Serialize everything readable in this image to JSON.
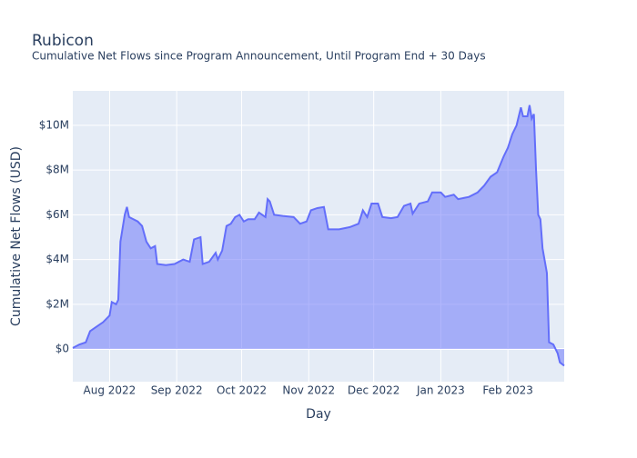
{
  "chart_data": {
    "type": "area",
    "title": "Rubicon",
    "subtitle": "Cumulative Net Flows since Program Announcement, Until Program End + 30 Days",
    "x_label": "Day",
    "y_label": "Cumulative Net Flows (USD)",
    "color": "#636efa",
    "grid": true,
    "x": [
      "2022-07-15",
      "2022-07-18",
      "2022-07-21",
      "2022-07-23",
      "2022-07-26",
      "2022-07-29",
      "2022-08-01",
      "2022-08-02",
      "2022-08-04",
      "2022-08-05",
      "2022-08-06",
      "2022-08-08",
      "2022-08-09",
      "2022-08-10",
      "2022-08-14",
      "2022-08-16",
      "2022-08-18",
      "2022-08-20",
      "2022-08-22",
      "2022-08-23",
      "2022-08-27",
      "2022-08-31",
      "2022-09-04",
      "2022-09-07",
      "2022-09-09",
      "2022-09-12",
      "2022-09-13",
      "2022-09-16",
      "2022-09-19",
      "2022-09-20",
      "2022-09-22",
      "2022-09-24",
      "2022-09-26",
      "2022-09-28",
      "2022-09-30",
      "2022-10-02",
      "2022-10-04",
      "2022-10-07",
      "2022-10-09",
      "2022-10-12",
      "2022-10-13",
      "2022-10-14",
      "2022-10-16",
      "2022-10-20",
      "2022-10-25",
      "2022-10-28",
      "2022-10-31",
      "2022-11-02",
      "2022-11-05",
      "2022-11-08",
      "2022-11-10",
      "2022-11-15",
      "2022-11-20",
      "2022-11-24",
      "2022-11-26",
      "2022-11-28",
      "2022-11-30",
      "2022-12-03",
      "2022-12-05",
      "2022-12-09",
      "2022-12-12",
      "2022-12-15",
      "2022-12-18",
      "2022-12-19",
      "2022-12-22",
      "2022-12-26",
      "2022-12-28",
      "2023-01-01",
      "2023-01-03",
      "2023-01-07",
      "2023-01-09",
      "2023-01-14",
      "2023-01-18",
      "2023-01-21",
      "2023-01-24",
      "2023-01-27",
      "2023-01-30",
      "2023-02-01",
      "2023-02-03",
      "2023-02-05",
      "2023-02-07",
      "2023-02-08",
      "2023-02-10",
      "2023-02-11",
      "2023-02-12",
      "2023-02-13",
      "2023-02-14",
      "2023-02-15",
      "2023-02-16",
      "2023-02-17",
      "2023-02-19",
      "2023-02-20",
      "2023-02-22",
      "2023-02-24",
      "2023-02-25",
      "2023-02-27"
    ],
    "values": [
      50000,
      200000,
      300000,
      800000,
      1000000,
      1200000,
      1500000,
      2100000,
      2000000,
      2200000,
      4800000,
      6000000,
      6350000,
      5900000,
      5700000,
      5500000,
      4800000,
      4500000,
      4600000,
      3800000,
      3750000,
      3800000,
      4000000,
      3900000,
      4900000,
      5000000,
      3800000,
      3900000,
      4300000,
      4000000,
      4400000,
      5500000,
      5600000,
      5900000,
      6000000,
      5700000,
      5800000,
      5800000,
      6100000,
      5900000,
      6700000,
      6600000,
      6000000,
      5950000,
      5900000,
      5600000,
      5700000,
      6200000,
      6300000,
      6350000,
      5350000,
      5350000,
      5450000,
      5600000,
      6200000,
      5900000,
      6500000,
      6500000,
      5900000,
      5850000,
      5900000,
      6400000,
      6500000,
      6050000,
      6500000,
      6600000,
      7000000,
      7000000,
      6800000,
      6900000,
      6700000,
      6800000,
      7000000,
      7300000,
      7700000,
      7900000,
      8600000,
      9000000,
      9600000,
      10000000,
      10800000,
      10400000,
      10400000,
      10900000,
      10300000,
      10500000,
      8000000,
      6000000,
      5800000,
      4500000,
      3400000,
      300000,
      200000,
      -200000,
      -600000,
      -750000
    ],
    "xlim": [
      "2022-07-15",
      "2023-02-27"
    ],
    "xticks": [
      {
        "value": "2022-08-01",
        "label": "Aug 2022"
      },
      {
        "value": "2022-09-01",
        "label": "Sep 2022"
      },
      {
        "value": "2022-10-01",
        "label": "Oct 2022"
      },
      {
        "value": "2022-11-01",
        "label": "Nov 2022"
      },
      {
        "value": "2022-12-01",
        "label": "Dec 2022"
      },
      {
        "value": "2023-01-01",
        "label": "Jan 2023"
      },
      {
        "value": "2023-02-01",
        "label": "Feb 2023"
      }
    ],
    "ylim": [
      -1460000,
      11540000
    ],
    "yticks": [
      {
        "value": 0,
        "label": "$0"
      },
      {
        "value": 2000000,
        "label": "$2M"
      },
      {
        "value": 4000000,
        "label": "$4M"
      },
      {
        "value": 6000000,
        "label": "$6M"
      },
      {
        "value": 8000000,
        "label": "$8M"
      },
      {
        "value": 10000000,
        "label": "$10M"
      }
    ]
  }
}
